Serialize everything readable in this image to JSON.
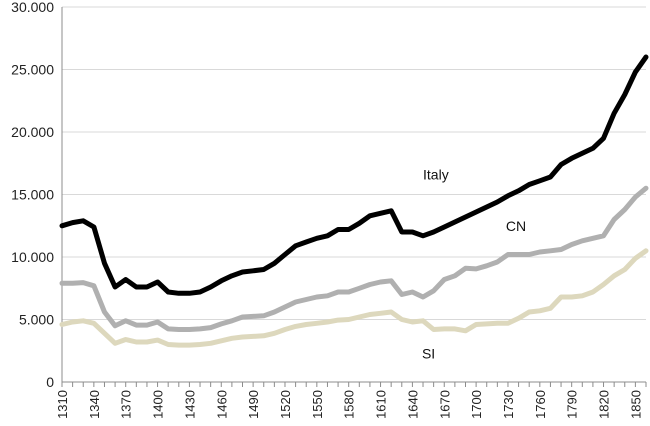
{
  "chart_data": {
    "type": "line",
    "title": "",
    "xlabel": "",
    "ylabel": "",
    "x": [
      1310,
      1320,
      1330,
      1340,
      1350,
      1360,
      1370,
      1380,
      1390,
      1400,
      1410,
      1420,
      1430,
      1440,
      1450,
      1460,
      1470,
      1480,
      1490,
      1500,
      1510,
      1520,
      1530,
      1540,
      1550,
      1560,
      1570,
      1580,
      1590,
      1600,
      1610,
      1620,
      1630,
      1640,
      1650,
      1660,
      1670,
      1680,
      1690,
      1700,
      1710,
      1720,
      1730,
      1740,
      1750,
      1760,
      1770,
      1780,
      1790,
      1800,
      1810,
      1820,
      1830,
      1840,
      1850,
      1860
    ],
    "x_tick_labels": [
      "1310",
      "1340",
      "1370",
      "1400",
      "1430",
      "1460",
      "1490",
      "1520",
      "1550",
      "1580",
      "1610",
      "1640",
      "1670",
      "1700",
      "1730",
      "1760",
      "1790",
      "1820",
      "1850"
    ],
    "y_tick_labels": [
      "0",
      "5.000",
      "10.000",
      "15.000",
      "20.000",
      "25.000",
      "30.000"
    ],
    "y_ticks": [
      0,
      5000,
      10000,
      15000,
      20000,
      25000,
      30000
    ],
    "ylim": [
      0,
      30000
    ],
    "grid": "horizontal",
    "legend": "none (labels placed on chart)",
    "series": [
      {
        "name": "Italy",
        "color": "#000000",
        "label_at": [
          1650,
          16200
        ],
        "values": [
          12500,
          12750,
          12900,
          12400,
          9500,
          7600,
          8200,
          7600,
          7600,
          8000,
          7200,
          7100,
          7100,
          7200,
          7600,
          8100,
          8500,
          8800,
          8900,
          9000,
          9500,
          10200,
          10900,
          11200,
          11500,
          11700,
          12200,
          12200,
          12700,
          13300,
          13500,
          13700,
          12000,
          12000,
          11700,
          12000,
          12400,
          12800,
          13200,
          13600,
          14000,
          14400,
          14900,
          15300,
          15800,
          16100,
          16400,
          17400,
          17900,
          18300,
          18700,
          19500,
          21500,
          23000,
          24800,
          26000
        ]
      },
      {
        "name": "CN",
        "color": "#b0b0b0",
        "label_at": [
          1728,
          12100
        ],
        "values": [
          7900,
          7900,
          7950,
          7700,
          5600,
          4500,
          4900,
          4550,
          4550,
          4800,
          4250,
          4200,
          4200,
          4250,
          4350,
          4650,
          4900,
          5200,
          5250,
          5300,
          5600,
          6000,
          6400,
          6600,
          6800,
          6900,
          7200,
          7200,
          7500,
          7800,
          8000,
          8100,
          7000,
          7200,
          6800,
          7300,
          8200,
          8500,
          9100,
          9050,
          9300,
          9600,
          10200,
          10200,
          10200,
          10400,
          10500,
          10600,
          11000,
          11300,
          11500,
          11700,
          13000,
          13800,
          14800,
          15500
        ]
      },
      {
        "name": "SI",
        "color": "#ddd8bd",
        "label_at": [
          1649,
          1900
        ],
        "values": [
          4600,
          4800,
          4900,
          4700,
          3900,
          3100,
          3400,
          3200,
          3200,
          3350,
          3000,
          2950,
          2950,
          3000,
          3100,
          3300,
          3500,
          3600,
          3650,
          3700,
          3900,
          4200,
          4450,
          4600,
          4700,
          4800,
          4950,
          5000,
          5200,
          5400,
          5500,
          5600,
          5000,
          4800,
          4900,
          4200,
          4250,
          4250,
          4100,
          4600,
          4650,
          4700,
          4700,
          5100,
          5600,
          5700,
          5900,
          6800,
          6800,
          6900,
          7200,
          7800,
          8500,
          9000,
          9900,
          10500
        ]
      }
    ]
  }
}
